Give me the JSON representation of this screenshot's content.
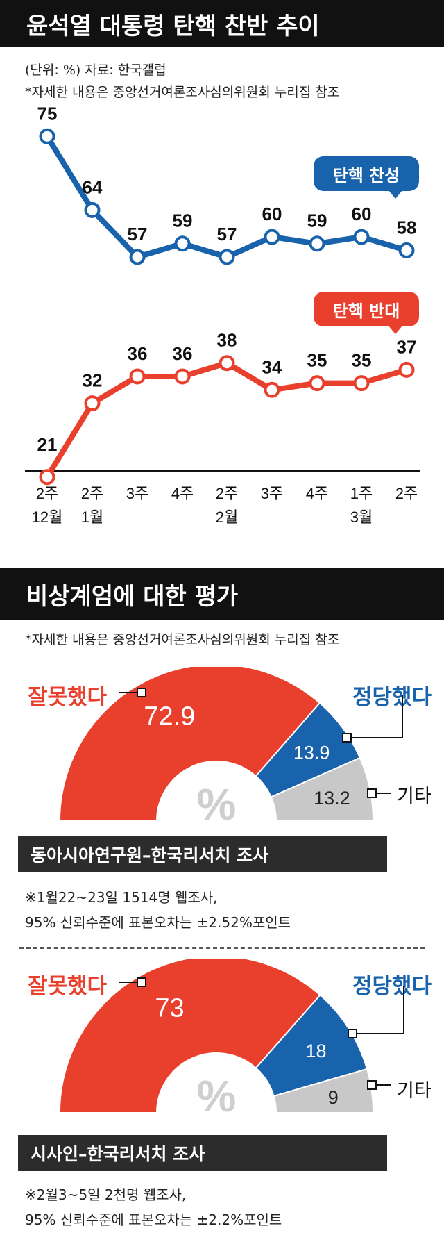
{
  "header": {
    "title": "윤석열 대통령 탄핵 찬반 추이"
  },
  "trend": {
    "unit_source": "(단위: %) 자료: 한국갤럽",
    "note": "*자세한 내용은 중앙선거여론조사심의위원회 누리집 참조",
    "support_label": "탄핵 찬성",
    "oppose_label": "탄핵 반대"
  },
  "section2": {
    "title": "비상계엄에 대한 평가",
    "note": "*자세한 내용은 중앙선거여론조사심의위원회 누리집 참조"
  },
  "poll1": {
    "wrong_label": "잘못했다",
    "right_label": "정당했다",
    "other_label": "기타",
    "unit": "%",
    "source": "동아시아연구원–한국리서치 조사",
    "detail1": "※1월22~23일 1514명 웹조사,",
    "detail2": "95% 신뢰수준에 표본오차는 ±2.52%포인트"
  },
  "poll2": {
    "wrong_label": "잘못했다",
    "right_label": "정당했다",
    "other_label": "기타",
    "unit": "%",
    "source": "시사인–한국리서치 조사",
    "detail1": "※2월3~5일 2천명 웹조사,",
    "detail2": "95% 신뢰수준에 표본오차는 ±2.2%포인트"
  },
  "colors": {
    "blue": "#1863ab",
    "red": "#e9402e",
    "gray": "#c8c8c8",
    "dark": "#111111"
  },
  "chart_data": [
    {
      "type": "line",
      "categories": [
        [
          "2주",
          "12월"
        ],
        [
          "2주",
          "1월"
        ],
        [
          "3주",
          ""
        ],
        [
          "4주",
          ""
        ],
        [
          "2주",
          "2월"
        ],
        [
          "3주",
          ""
        ],
        [
          "4주",
          ""
        ],
        [
          "1주",
          "3월"
        ],
        [
          "2주",
          ""
        ]
      ],
      "series": [
        {
          "name": "탄핵 찬성",
          "values": [
            75,
            64,
            57,
            59,
            57,
            60,
            59,
            60,
            58
          ],
          "color": "#1863ab"
        },
        {
          "name": "탄핵 반대",
          "values": [
            21,
            32,
            36,
            36,
            38,
            34,
            35,
            35,
            37
          ],
          "color": "#e9402e"
        }
      ]
    },
    {
      "type": "pie",
      "labels": [
        "잘못했다",
        "정당했다",
        "기타"
      ],
      "values": [
        72.9,
        13.9,
        13.2
      ],
      "display": [
        "72.9",
        "13.9",
        "13.2"
      ]
    },
    {
      "type": "pie",
      "labels": [
        "잘못했다",
        "정당했다",
        "기타"
      ],
      "values": [
        73,
        18,
        9
      ],
      "display": [
        "73",
        "18",
        "9"
      ]
    }
  ]
}
